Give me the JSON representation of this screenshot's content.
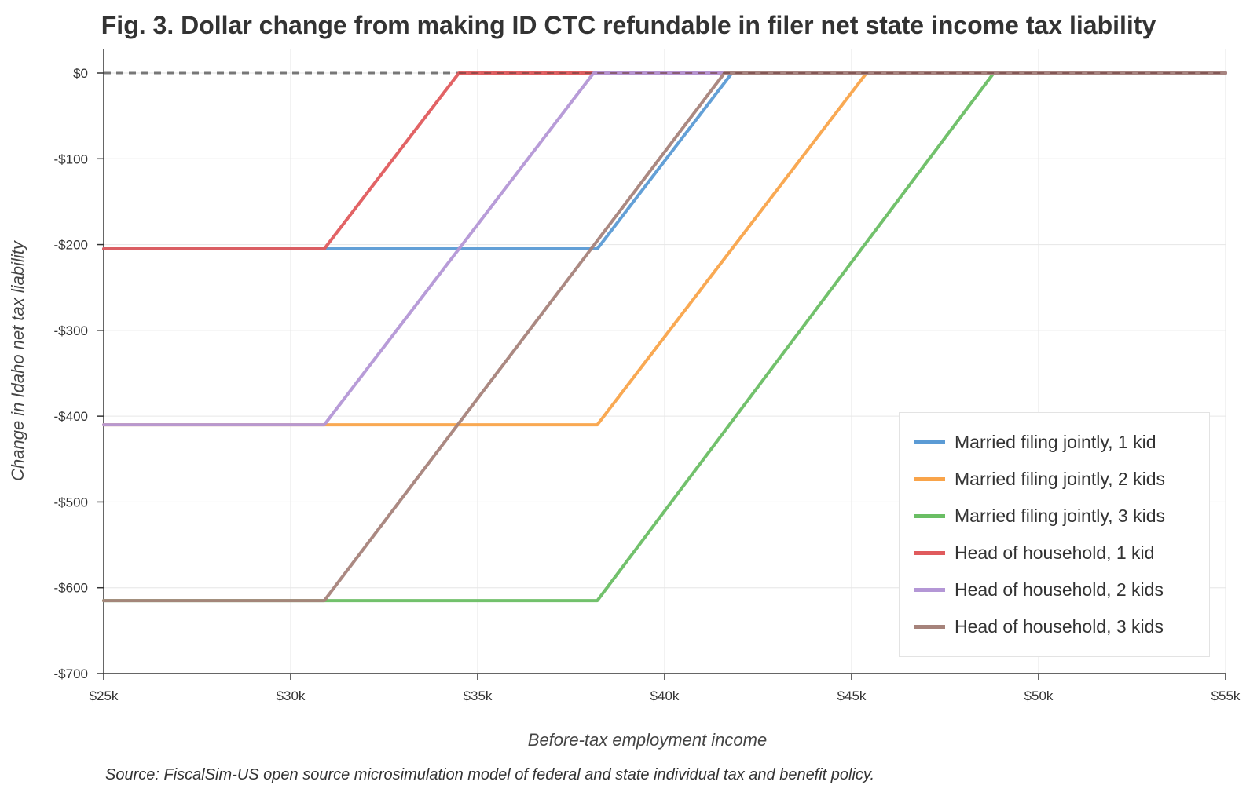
{
  "chart_data": {
    "type": "line",
    "title": "Fig. 3. Dollar change from making ID CTC refundable in filer net state income tax liability",
    "xlabel": "Before-tax employment income",
    "ylabel": "Change in Idaho net tax liability",
    "xlim": [
      25000,
      55000
    ],
    "ylim": [
      -700,
      0
    ],
    "x_ticks": [
      25000,
      30000,
      35000,
      40000,
      45000,
      50000,
      55000
    ],
    "x_tick_labels": [
      "$25k",
      "$30k",
      "$35k",
      "$40k",
      "$45k",
      "$50k",
      "$55k"
    ],
    "y_ticks": [
      0,
      -100,
      -200,
      -300,
      -400,
      -500,
      -600,
      -700
    ],
    "y_tick_labels": [
      "$0",
      "-$100",
      "-$200",
      "-$300",
      "-$400",
      "-$500",
      "-$600",
      "-$700"
    ],
    "grid": true,
    "legend_position": "bottom-right",
    "reference_line": {
      "y": 0,
      "style": "dashed",
      "color": "#777777"
    },
    "series": [
      {
        "name": "Married filing jointly, 1 kid",
        "color": "#5b9bd5",
        "x": [
          25000,
          30900,
          38200,
          41800,
          55000
        ],
        "y": [
          -205,
          -205,
          -205,
          0,
          0
        ]
      },
      {
        "name": "Married filing jointly, 2 kids",
        "color": "#f9a44a",
        "x": [
          25000,
          30900,
          38200,
          45400,
          55000
        ],
        "y": [
          -410,
          -410,
          -410,
          0,
          0
        ]
      },
      {
        "name": "Married filing jointly, 3 kids",
        "color": "#6abe64",
        "x": [
          25000,
          30900,
          38200,
          48800,
          55000
        ],
        "y": [
          -615,
          -615,
          -615,
          0,
          0
        ]
      },
      {
        "name": "Head of household, 1 kid",
        "color": "#e05b5d",
        "x": [
          25000,
          30900,
          34500,
          55000
        ],
        "y": [
          -205,
          -205,
          0,
          0
        ]
      },
      {
        "name": "Head of household, 2 kids",
        "color": "#b497d6",
        "x": [
          25000,
          30900,
          38100,
          55000
        ],
        "y": [
          -410,
          -410,
          0,
          0
        ]
      },
      {
        "name": "Head of household, 3 kids",
        "color": "#a6837b",
        "x": [
          25000,
          30900,
          41600,
          55000
        ],
        "y": [
          -615,
          -615,
          0,
          0
        ]
      }
    ],
    "source": "Source: FiscalSim-US open source microsimulation model of federal and state individual tax and benefit policy."
  }
}
